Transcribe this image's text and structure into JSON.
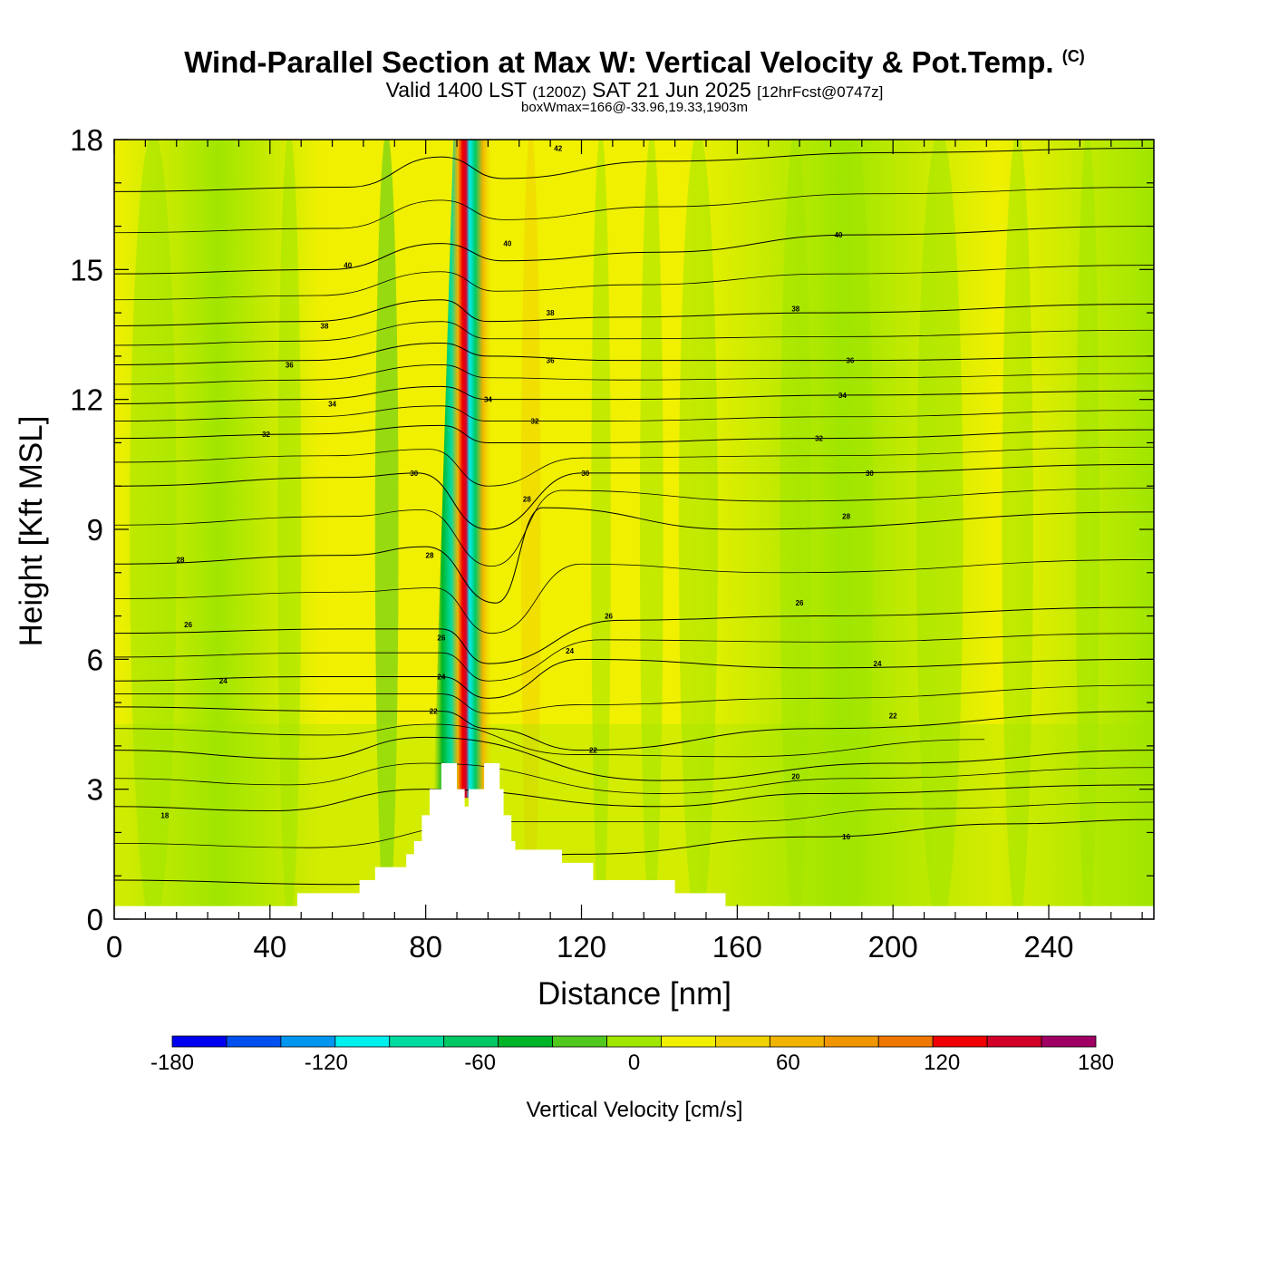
{
  "title": {
    "main": "Wind-Parallel Section at Max W: Vertical Velocity & Pot.Temp.",
    "copyright": "(C)",
    "valid_prefix": "Valid 1400 LST",
    "valid_utc": "(1200Z)",
    "valid_date": "SAT 21 Jun 2025",
    "forecast": "[12hrFcst@0747z]",
    "box_wmax": "boxWmax=166@-33.96,19.33,1903m"
  },
  "chart_data": {
    "type": "heatmap",
    "xlabel": "Distance [nm]",
    "ylabel": "Height [Kft MSL]",
    "xlim": [
      0,
      267
    ],
    "ylim": [
      0,
      18
    ],
    "x_ticks": [
      0,
      40,
      80,
      120,
      160,
      200,
      240
    ],
    "x_tick_labels": [
      "0",
      "40",
      "80",
      "120",
      "160",
      "200",
      "240"
    ],
    "y_ticks": [
      0,
      3,
      6,
      9,
      12,
      15,
      18
    ],
    "y_tick_labels": [
      "0",
      "3",
      "6",
      "9",
      "12",
      "15",
      "18"
    ],
    "colorbar": {
      "label": "Vertical Velocity [cm/s]",
      "range": [
        -180,
        180
      ],
      "step": 20,
      "tick_values": [
        -180,
        -120,
        -60,
        0,
        60,
        120,
        180
      ],
      "tick_labels": [
        "-180",
        "-120",
        "-60",
        "0",
        "60",
        "120",
        "180"
      ],
      "colors": [
        "#0000f0",
        "#0050f0",
        "#0096f0",
        "#00f0f0",
        "#00dca0",
        "#00c864",
        "#00b428",
        "#50c81e",
        "#a0e600",
        "#f0f000",
        "#f0d200",
        "#f0b400",
        "#f09600",
        "#f07800",
        "#f00000",
        "#d20028",
        "#a00064"
      ]
    },
    "terrain_profile_kft": [
      [
        0,
        0.3
      ],
      [
        47,
        0.3
      ],
      [
        47,
        0.6
      ],
      [
        63,
        0.6
      ],
      [
        63,
        0.9
      ],
      [
        67,
        0.9
      ],
      [
        67,
        1.2
      ],
      [
        75,
        1.2
      ],
      [
        75,
        1.5
      ],
      [
        77,
        1.5
      ],
      [
        77,
        1.8
      ],
      [
        79,
        1.8
      ],
      [
        79,
        2.4
      ],
      [
        81,
        2.4
      ],
      [
        81,
        3.0
      ],
      [
        84,
        3.0
      ],
      [
        84,
        3.6
      ],
      [
        88,
        3.6
      ],
      [
        88,
        3.0
      ],
      [
        90,
        3.0
      ],
      [
        90,
        2.6
      ],
      [
        91,
        2.6
      ],
      [
        91,
        3.0
      ],
      [
        95,
        3.0
      ],
      [
        95,
        3.6
      ],
      [
        99,
        3.6
      ],
      [
        99,
        3.0
      ],
      [
        100,
        3.0
      ],
      [
        100,
        2.4
      ],
      [
        102,
        2.4
      ],
      [
        102,
        1.8
      ],
      [
        103,
        1.8
      ],
      [
        103,
        1.6
      ],
      [
        115,
        1.6
      ],
      [
        115,
        1.3
      ],
      [
        123,
        1.3
      ],
      [
        123,
        0.9
      ],
      [
        144,
        0.9
      ],
      [
        144,
        0.6
      ],
      [
        157,
        0.6
      ],
      [
        157,
        0.3
      ],
      [
        267,
        0.3
      ]
    ],
    "wmax_column": {
      "distance_nm": 91,
      "height_kft": 7,
      "value_cm_s": 166
    },
    "theta_contours": [
      {
        "label": "16",
        "points": [
          [
            0,
            0.9
          ],
          [
            60,
            0.8
          ],
          [
            120,
            1.5
          ],
          [
            180,
            1.9
          ],
          [
            230,
            2.2
          ],
          [
            267,
            2.3
          ]
        ],
        "labels_at": [
          [
            188,
            1.9
          ]
        ]
      },
      {
        "label": "18",
        "points": [
          [
            0,
            2.6
          ],
          [
            40,
            2.5
          ],
          [
            80,
            3.0
          ],
          [
            140,
            2.6
          ],
          [
            180,
            2.9
          ],
          [
            267,
            3.1
          ]
        ],
        "labels_at": [
          [
            13,
            2.4
          ]
        ]
      },
      {
        "label": "20",
        "points": [
          [
            0,
            3.9
          ],
          [
            50,
            3.7
          ],
          [
            80,
            4.2
          ],
          [
            140,
            3.2
          ],
          [
            200,
            3.6
          ],
          [
            267,
            3.9
          ]
        ],
        "labels_at": [
          [
            175,
            3.3
          ]
        ]
      },
      {
        "label": "22",
        "points": [
          [
            0,
            4.9
          ],
          [
            60,
            4.8
          ],
          [
            84,
            4.8
          ],
          [
            96,
            4.4
          ],
          [
            120,
            3.9
          ],
          [
            180,
            4.4
          ],
          [
            267,
            4.8
          ]
        ],
        "labels_at": [
          [
            82,
            4.8
          ],
          [
            123,
            3.9
          ],
          [
            200,
            4.7
          ]
        ]
      },
      {
        "label": "24",
        "points": [
          [
            0,
            5.5
          ],
          [
            50,
            5.6
          ],
          [
            84,
            5.6
          ],
          [
            96,
            5.1
          ],
          [
            120,
            6.0
          ],
          [
            180,
            5.8
          ],
          [
            267,
            6.0
          ]
        ],
        "labels_at": [
          [
            28,
            5.5
          ],
          [
            84,
            5.6
          ],
          [
            117,
            6.2
          ],
          [
            196,
            5.9
          ]
        ]
      },
      {
        "label": "26",
        "points": [
          [
            0,
            6.6
          ],
          [
            60,
            6.7
          ],
          [
            84,
            6.7
          ],
          [
            96,
            5.9
          ],
          [
            130,
            6.9
          ],
          [
            180,
            7.0
          ],
          [
            267,
            7.2
          ]
        ],
        "labels_at": [
          [
            19,
            6.8
          ],
          [
            84,
            6.5
          ],
          [
            127,
            7.0
          ],
          [
            176,
            7.3
          ]
        ]
      },
      {
        "label": "28",
        "points": [
          [
            0,
            8.2
          ],
          [
            60,
            8.4
          ],
          [
            80,
            8.6
          ],
          [
            98,
            7.3
          ],
          [
            110,
            9.5
          ],
          [
            160,
            9.0
          ],
          [
            267,
            9.4
          ]
        ],
        "labels_at": [
          [
            17,
            8.3
          ],
          [
            81,
            8.4
          ],
          [
            106,
            9.7
          ],
          [
            188,
            9.3
          ]
        ]
      },
      {
        "label": "30",
        "points": [
          [
            0,
            10.0
          ],
          [
            60,
            10.2
          ],
          [
            78,
            10.3
          ],
          [
            96,
            9.0
          ],
          [
            120,
            10.3
          ],
          [
            180,
            10.3
          ],
          [
            267,
            10.5
          ]
        ],
        "labels_at": [
          [
            77,
            10.3
          ],
          [
            121,
            10.3
          ],
          [
            194,
            10.3
          ]
        ]
      },
      {
        "label": "32",
        "points": [
          [
            0,
            11.1
          ],
          [
            50,
            11.2
          ],
          [
            84,
            11.4
          ],
          [
            96,
            11.0
          ],
          [
            120,
            11.0
          ],
          [
            180,
            11.1
          ],
          [
            267,
            11.3
          ]
        ],
        "labels_at": [
          [
            39,
            11.2
          ],
          [
            108,
            11.5
          ],
          [
            181,
            11.1
          ]
        ]
      },
      {
        "label": "34",
        "points": [
          [
            0,
            11.9
          ],
          [
            50,
            12.0
          ],
          [
            84,
            12.3
          ],
          [
            96,
            12.0
          ],
          [
            130,
            12.0
          ],
          [
            190,
            12.1
          ],
          [
            267,
            12.2
          ]
        ],
        "labels_at": [
          [
            56,
            11.9
          ],
          [
            96,
            12.0
          ],
          [
            187,
            12.1
          ]
        ]
      },
      {
        "label": "36",
        "points": [
          [
            0,
            12.8
          ],
          [
            50,
            12.9
          ],
          [
            84,
            13.3
          ],
          [
            96,
            13.0
          ],
          [
            130,
            12.9
          ],
          [
            190,
            12.9
          ],
          [
            267,
            13.0
          ]
        ],
        "labels_at": [
          [
            45,
            12.8
          ],
          [
            112,
            12.9
          ],
          [
            189,
            12.9
          ]
        ]
      },
      {
        "label": "38",
        "points": [
          [
            0,
            13.7
          ],
          [
            50,
            13.8
          ],
          [
            84,
            14.3
          ],
          [
            96,
            13.8
          ],
          [
            130,
            13.9
          ],
          [
            180,
            14.0
          ],
          [
            267,
            14.2
          ]
        ],
        "labels_at": [
          [
            54,
            13.7
          ],
          [
            112,
            14.0
          ],
          [
            175,
            14.1
          ]
        ]
      },
      {
        "label": "40",
        "points": [
          [
            0,
            14.9
          ],
          [
            55,
            15.0
          ],
          [
            84,
            15.6
          ],
          [
            100,
            15.2
          ],
          [
            140,
            15.4
          ],
          [
            190,
            15.8
          ],
          [
            267,
            16.0
          ]
        ],
        "labels_at": [
          [
            60,
            15.1
          ],
          [
            101,
            15.6
          ],
          [
            186,
            15.8
          ]
        ]
      },
      {
        "label": "42",
        "points": [
          [
            0,
            16.8
          ],
          [
            60,
            16.9
          ],
          [
            84,
            17.6
          ],
          [
            100,
            17.1
          ],
          [
            140,
            17.5
          ],
          [
            200,
            17.7
          ],
          [
            267,
            17.8
          ]
        ],
        "labels_at": [
          [
            114,
            17.8
          ]
        ]
      }
    ]
  }
}
